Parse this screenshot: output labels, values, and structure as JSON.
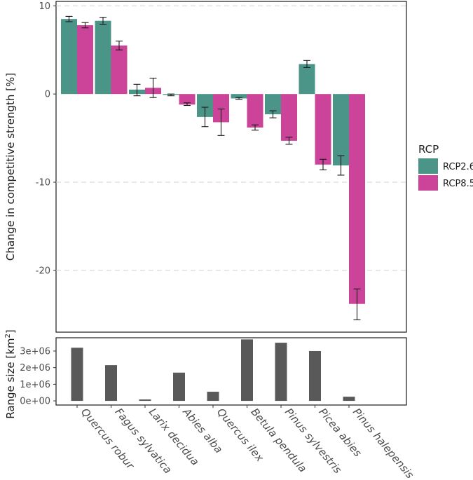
{
  "chart_data": [
    {
      "type": "bar",
      "ylabel": "Change in competitive strength [%]",
      "categories": [
        "Quercus robur",
        "Fagus sylvatica",
        "Larix decidua",
        "Abies alba",
        "Quercus ilex",
        "Betula pendula",
        "Pinus sylvestris",
        "Picea abies",
        "Pinus halepensis"
      ],
      "ylim": [
        -27,
        10.5
      ],
      "yticks": [
        -20,
        -10,
        0,
        10
      ],
      "yticklabels": [
        "-20",
        "-10",
        "0",
        "10"
      ],
      "grid": "horizontal dashed",
      "legend": {
        "title": "RCP",
        "position": "right"
      },
      "series": [
        {
          "name": "RCP2.6",
          "color": "#4a9488",
          "values": [
            8.5,
            8.3,
            0.5,
            -0.1,
            -2.6,
            -0.5,
            -2.3,
            3.4,
            -8.1
          ],
          "err_low": [
            8.2,
            7.9,
            -0.2,
            -0.2,
            -3.7,
            -0.6,
            -2.7,
            3.0,
            -9.2
          ],
          "err_high": [
            8.8,
            8.7,
            1.1,
            0.0,
            -1.5,
            -0.4,
            -1.9,
            3.8,
            -7.0
          ]
        },
        {
          "name": "RCP8.5",
          "color": "#cc4499",
          "values": [
            7.8,
            5.5,
            0.7,
            -1.2,
            -3.2,
            -3.8,
            -5.3,
            -8.0,
            -23.8
          ],
          "err_low": [
            7.5,
            5.0,
            -0.4,
            -1.3,
            -4.7,
            -4.1,
            -5.7,
            -8.6,
            -25.6
          ],
          "err_high": [
            8.1,
            6.0,
            1.8,
            -1.0,
            -1.7,
            -3.5,
            -4.9,
            -7.4,
            -22.1
          ]
        }
      ]
    },
    {
      "type": "bar",
      "ylabel": "Range size [km",
      "ylabel_sup": "2",
      "ylabel_close": "]",
      "categories": [
        "Quercus robur",
        "Fagus sylvatica",
        "Larix decidua",
        "Abies alba",
        "Quercus ilex",
        "Betula pendula",
        "Pinus sylvestris",
        "Picea abies",
        "Pinus halepensis"
      ],
      "values": [
        3200000,
        2150000,
        80000,
        1700000,
        550000,
        3700000,
        3500000,
        3000000,
        250000
      ],
      "color": "#595959",
      "ylim": [
        -250000,
        3800000
      ],
      "yticks": [
        0,
        1000000,
        2000000,
        3000000
      ],
      "yticklabels": [
        "0e+00",
        "1e+06",
        "2e+06",
        "3e+06"
      ]
    }
  ]
}
